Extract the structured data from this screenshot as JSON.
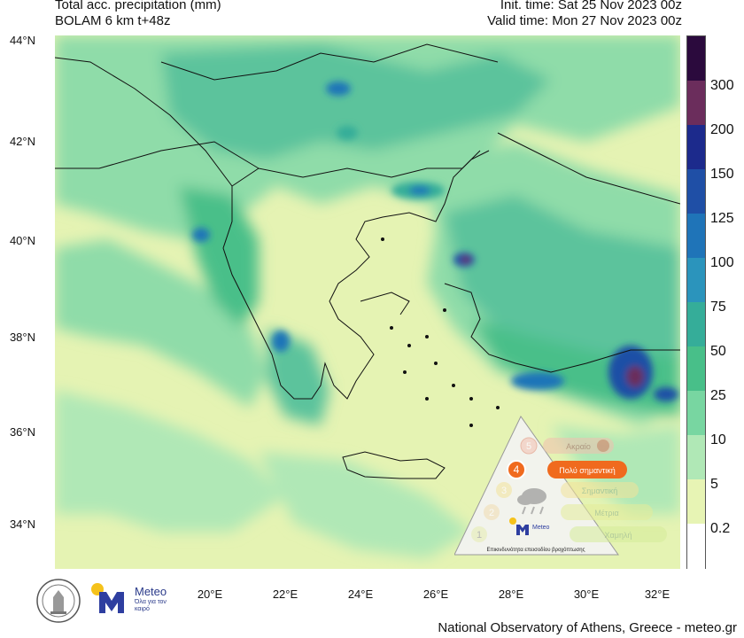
{
  "header": {
    "title_line1": "Total acc. precipitation (mm)",
    "title_line2": "BOLAM 6 km t+48z",
    "init_time": "Init. time: Sat 25 Nov 2023 00z",
    "valid_time": "Valid time: Mon 27 Nov 2023 00z"
  },
  "axes": {
    "lat_labels": [
      "44°N",
      "42°N",
      "40°N",
      "38°N",
      "36°N",
      "34°N"
    ],
    "lon_labels": [
      "20°E",
      "22°E",
      "24°E",
      "26°E",
      "28°E",
      "30°E",
      "32°E"
    ]
  },
  "colorbar": {
    "labels": [
      "300",
      "200",
      "150",
      "125",
      "100",
      "75",
      "50",
      "25",
      "10",
      "5",
      "0.2"
    ],
    "colors": [
      "#2b0a3d",
      "#6b2d5c",
      "#1c2a8c",
      "#1f4fa6",
      "#1f74b8",
      "#2b94bc",
      "#35ad99",
      "#48bf89",
      "#78d6a1",
      "#b0e8b6",
      "#e7f4b4",
      "#ffffff"
    ]
  },
  "legend_panel": {
    "levels": [
      {
        "num": "5",
        "text": "Ακραίο"
      },
      {
        "num": "4",
        "text": "Πολύ σημαντική"
      },
      {
        "num": "3",
        "text": "Σημαντική"
      },
      {
        "num": "2",
        "text": "Μέτρια"
      },
      {
        "num": "1",
        "text": "Χαμηλή"
      }
    ],
    "panel_title": "Επικινδυνότητα επεισοδίου βροχόπτωσης",
    "brand": "Meteo"
  },
  "branding": {
    "logo_name": "Meteo",
    "logo_tagline": "Όλα για τον καιρό",
    "footer": "National Observatory of Athens, Greece - meteo.gr"
  }
}
